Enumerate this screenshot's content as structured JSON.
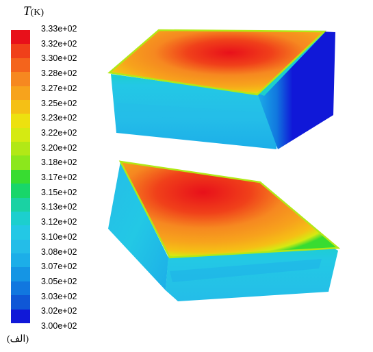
{
  "legend": {
    "symbol": "T",
    "unit": "(K)",
    "ticks": [
      "3.33e+02",
      "3.32e+02",
      "3.30e+02",
      "3.28e+02",
      "3.27e+02",
      "3.25e+02",
      "3.23e+02",
      "3.22e+02",
      "3.20e+02",
      "3.18e+02",
      "3.17e+02",
      "3.15e+02",
      "3.13e+02",
      "3.12e+02",
      "3.10e+02",
      "3.08e+02",
      "3.07e+02",
      "3.05e+02",
      "3.03e+02",
      "3.02e+02",
      "3.00e+02"
    ],
    "colors": [
      "#e8101a",
      "#f0401a",
      "#f4641c",
      "#f68820",
      "#f7a31c",
      "#f5c015",
      "#ede10f",
      "#d5ea12",
      "#b2e816",
      "#8ce71c",
      "#38dc31",
      "#18d66a",
      "#1ad2a3",
      "#1ccfce",
      "#23c8e5",
      "#24bde8",
      "#1caee8",
      "#1595e4",
      "#1177df",
      "#0f57d6",
      "#1018d8"
    ]
  },
  "caption": "(الف)"
}
